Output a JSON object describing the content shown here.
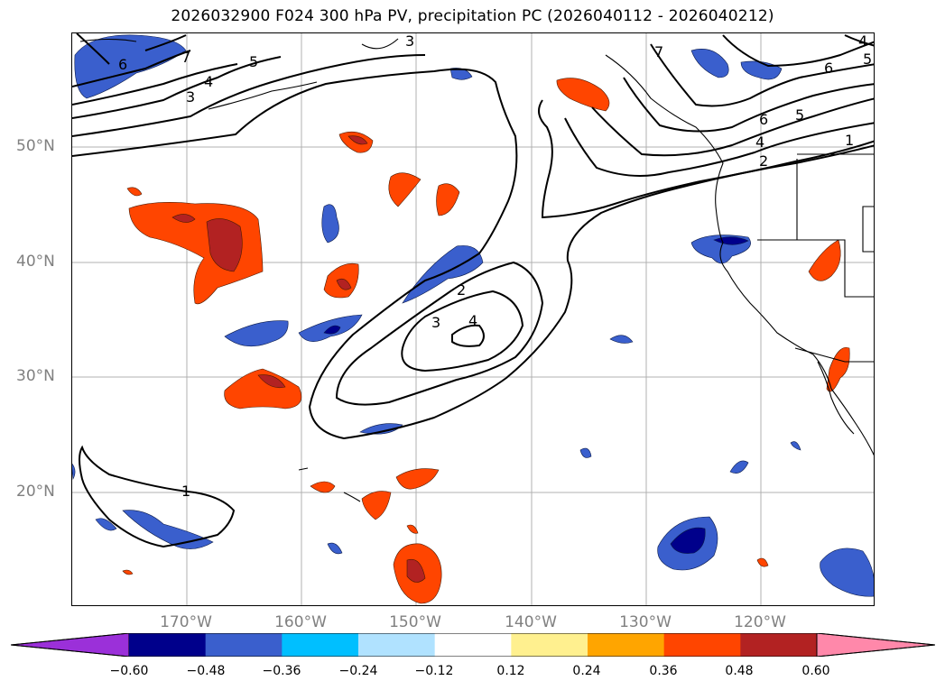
{
  "title": "2026032900 F024 300 hPa PV, precipitation PC (2026040112 - 2026040212)",
  "map": {
    "lat_labels": [
      "50°N",
      "40°N",
      "30°N",
      "20°N"
    ],
    "lon_labels": [
      "170°W",
      "160°W",
      "150°W",
      "140°W",
      "130°W",
      "120°W"
    ],
    "pv_contour_labels": [
      "1",
      "2",
      "3",
      "4",
      "5",
      "6",
      "7"
    ],
    "colors": {
      "neg_060": "#9b30d9",
      "neg_048": "#00008b",
      "neg_036": "#3a5fcd",
      "neg_024": "#00bfff",
      "neg_012": "#b0e2ff",
      "zero": "#ffffff",
      "pos_012": "#fff08f",
      "pos_024": "#ffa500",
      "pos_036": "#ff4500",
      "pos_048": "#b22222",
      "pos_060": "#ff88aa"
    }
  },
  "colorbar": {
    "ticks": [
      "−0.60",
      "−0.48",
      "−0.36",
      "−0.24",
      "−0.12",
      "0.12",
      "0.24",
      "0.36",
      "0.48",
      "0.60"
    ],
    "segment_colors": [
      "#9b30d9",
      "#00008b",
      "#3a5fcd",
      "#00bfff",
      "#b0e2ff",
      "#ffffff",
      "#fff08f",
      "#ffa500",
      "#ff4500",
      "#b22222",
      "#ff88aa"
    ]
  }
}
